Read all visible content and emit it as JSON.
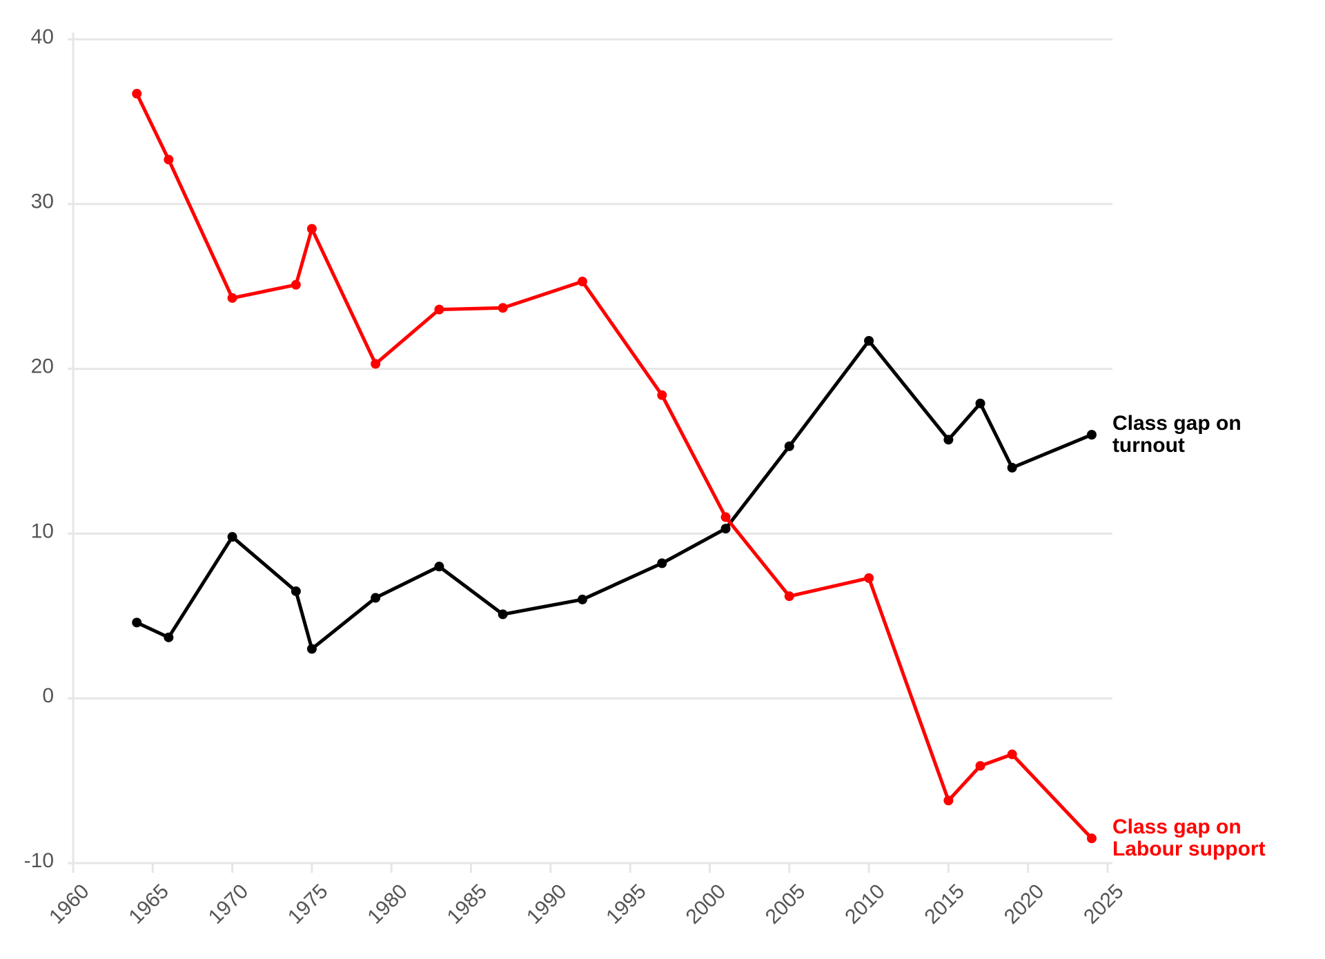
{
  "chart_data": {
    "type": "line",
    "x": [
      1964,
      1966,
      1970,
      1974,
      1975,
      1979,
      1983,
      1987,
      1992,
      1997,
      2001,
      2005,
      2010,
      2015,
      2017,
      2019,
      2024
    ],
    "series": [
      {
        "name": "Class gap on turnout",
        "color": "#000000",
        "values": [
          4.6,
          3.7,
          9.8,
          6.5,
          3.0,
          6.1,
          8.0,
          5.1,
          6.0,
          8.2,
          10.3,
          15.3,
          21.7,
          15.7,
          17.9,
          14.0,
          16.0
        ]
      },
      {
        "name": "Class gap on Labour support",
        "color": "#ff0000",
        "values": [
          36.7,
          32.7,
          24.3,
          25.1,
          28.5,
          20.3,
          23.6,
          23.7,
          25.3,
          18.4,
          11.0,
          6.2,
          7.3,
          -6.2,
          -4.1,
          -3.4,
          -8.5
        ]
      }
    ],
    "xlim": [
      1960,
      2025
    ],
    "xticks": [
      1960,
      1965,
      1970,
      1975,
      1980,
      1985,
      1990,
      1995,
      2000,
      2005,
      2010,
      2015,
      2020,
      2025
    ],
    "ylim": [
      -10,
      40
    ],
    "yticks": [
      -10,
      0,
      10,
      20,
      30,
      40
    ],
    "grid": true
  }
}
